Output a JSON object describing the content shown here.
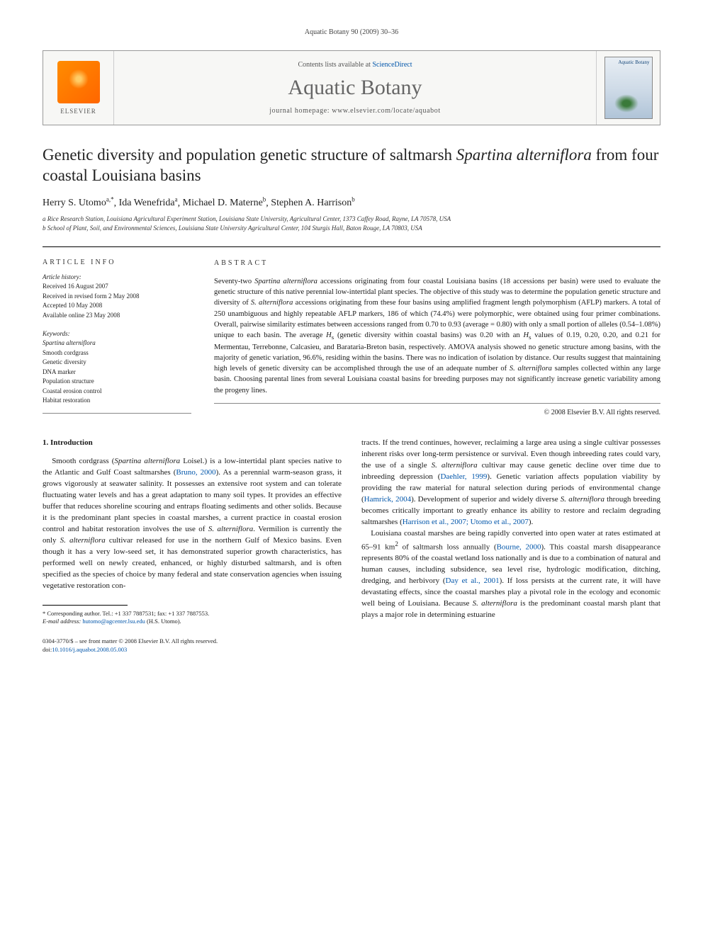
{
  "running_head": "Aquatic Botany 90 (2009) 30–36",
  "masthead": {
    "elsevier": "ELSEVIER",
    "contents_prefix": "Contents lists available at ",
    "contents_link": "ScienceDirect",
    "journal_name": "Aquatic Botany",
    "homepage": "journal homepage: www.elsevier.com/locate/aquabot",
    "cover_label": "Aquatic\nBotany"
  },
  "title_parts": {
    "pre": "Genetic diversity and population genetic structure of saltmarsh ",
    "species": "Spartina alterniflora",
    "post": " from four coastal Louisiana basins"
  },
  "authors": [
    {
      "name": "Herry S. Utomo",
      "sups": "a,*"
    },
    {
      "name": "Ida Wenefrida",
      "sups": "a"
    },
    {
      "name": "Michael D. Materne",
      "sups": "b"
    },
    {
      "name": "Stephen A. Harrison",
      "sups": "b"
    }
  ],
  "affiliations": [
    "a Rice Research Station, Louisiana Agricultural Experiment Station, Louisiana State University, Agricultural Center, 1373 Caffey Road, Rayne, LA 70578, USA",
    "b School of Plant, Soil, and Environmental Sciences, Louisiana State University Agricultural Center, 104 Sturgis Hall, Baton Rouge, LA 70803, USA"
  ],
  "article_info": {
    "heading": "ARTICLE INFO",
    "history_heading": "Article history:",
    "history": [
      "Received 16 August 2007",
      "Received in revised form 2 May 2008",
      "Accepted 10 May 2008",
      "Available online 23 May 2008"
    ],
    "keywords_heading": "Keywords:",
    "keywords": [
      {
        "text": "Spartina alterniflora",
        "italic": true
      },
      {
        "text": "Smooth cordgrass",
        "italic": false
      },
      {
        "text": "Genetic diversity",
        "italic": false
      },
      {
        "text": "DNA marker",
        "italic": false
      },
      {
        "text": "Population structure",
        "italic": false
      },
      {
        "text": "Coastal erosion control",
        "italic": false
      },
      {
        "text": "Habitat restoration",
        "italic": false
      }
    ]
  },
  "abstract": {
    "heading": "ABSTRACT",
    "text_parts": [
      {
        "t": "Seventy-two ",
        "i": false
      },
      {
        "t": "Spartina alterniflora",
        "i": true
      },
      {
        "t": " accessions originating from four coastal Louisiana basins (18 accessions per basin) were used to evaluate the genetic structure of this native perennial low-intertidal plant species. The objective of this study was to determine the population genetic structure and diversity of ",
        "i": false
      },
      {
        "t": "S. alterniflora",
        "i": true
      },
      {
        "t": " accessions originating from these four basins using amplified fragment length polymorphism (AFLP) markers. A total of 250 unambiguous and highly repeatable AFLP markers, 186 of which (74.4%) were polymorphic, were obtained using four primer combinations. Overall, pairwise similarity estimates between accessions ranged from 0.70 to 0.93 (average = 0.80) with only a small portion of alleles (0.54–1.08%) unique to each basin. The average ",
        "i": false
      },
      {
        "t": "H",
        "i": true
      },
      {
        "t": "s",
        "sub": true
      },
      {
        "t": " (genetic diversity within coastal basins) was 0.20 with an ",
        "i": false
      },
      {
        "t": "H",
        "i": true
      },
      {
        "t": "s",
        "sub": true
      },
      {
        "t": " values of 0.19, 0.20, 0.20, and 0.21 for Mermentau, Terrebonne, Calcasieu, and Barataria-Breton basin, respectively. AMOVA analysis showed no genetic structure among basins, with the majority of genetic variation, 96.6%, residing within the basins. There was no indication of isolation by distance. Our results suggest that maintaining high levels of genetic diversity can be accomplished through the use of an adequate number of ",
        "i": false
      },
      {
        "t": "S. alterniflora",
        "i": true
      },
      {
        "t": " samples collected within any large basin. Choosing parental lines from several Louisiana coastal basins for breeding purposes may not significantly increase genetic variability among the progeny lines.",
        "i": false
      }
    ],
    "copyright": "© 2008 Elsevier B.V. All rights reserved."
  },
  "section1": {
    "heading": "1. Introduction",
    "col1_html": "Smooth cordgrass (<span class=\"species\">Spartina alterniflora</span> Loisel.) is a low-intertidal plant species native to the Atlantic and Gulf Coast saltmarshes (<a class=\"ref\" href=\"#\">Bruno, 2000</a>). As a perennial warm-season grass, it grows vigorously at seawater salinity. It possesses an extensive root system and can tolerate fluctuating water levels and has a great adaptation to many soil types. It provides an effective buffer that reduces shoreline scouring and entraps floating sediments and other solids. Because it is the predominant plant species in coastal marshes, a current practice in coastal erosion control and habitat restoration involves the use of <span class=\"species\">S. alterniflora</span>. Vermilion is currently the only <span class=\"species\">S. alterniflora</span> cultivar released for use in the northern Gulf of Mexico basins. Even though it has a very low-seed set, it has demonstrated superior growth characteristics, has performed well on newly created, enhanced, or highly disturbed saltmarsh, and is often specified as the species of choice by many federal and state conservation agencies when issuing vegetative restoration con-",
    "col2_p1_html": "tracts. If the trend continues, however, reclaiming a large area using a single cultivar possesses inherent risks over long-term persistence or survival. Even though inbreeding rates could vary, the use of a single <span class=\"species\">S. alterniflora</span> cultivar may cause genetic decline over time due to inbreeding depression (<a class=\"ref\" href=\"#\">Daehler, 1999</a>). Genetic variation affects population viability by providing the raw material for natural selection during periods of environmental change (<a class=\"ref\" href=\"#\">Hamrick, 2004</a>). Development of superior and widely diverse <span class=\"species\">S. alterniflora</span> through breeding becomes critically important to greatly enhance its ability to restore and reclaim degrading saltmarshes (<a class=\"ref\" href=\"#\">Harrison et al., 2007; Utomo et al., 2007</a>).",
    "col2_p2_html": "Louisiana coastal marshes are being rapidly converted into open water at rates estimated at 65–91 km<sup>2</sup> of saltmarsh loss annually (<a class=\"ref\" href=\"#\">Bourne, 2000</a>). This coastal marsh disappearance represents 80% of the coastal wetland loss nationally and is due to a combination of natural and human causes, including subsidence, sea level rise, hydrologic modification, ditching, dredging, and herbivory (<a class=\"ref\" href=\"#\">Day et al., 2001</a>). If loss persists at the current rate, it will have devastating effects, since the coastal marshes play a pivotal role in the ecology and economic well being of Louisiana. Because <span class=\"species\">S. alterniflora</span> is the predominant coastal marsh plant that plays a major role in determining estuarine"
  },
  "footnotes": {
    "corr": "* Corresponding author. Tel.: +1 337 7887531; fax: +1 337 7887553.",
    "email_label": "E-mail address:",
    "email": "hutomo@agcenter.lsu.edu",
    "email_who": "(H.S. Utomo)."
  },
  "footer": {
    "line1": "0304-3770/$ – see front matter © 2008 Elsevier B.V. All rights reserved.",
    "doi_label": "doi:",
    "doi": "10.1016/j.aquabot.2008.05.003"
  },
  "colors": {
    "link": "#0055aa",
    "text": "#1a1a1a",
    "rule": "#000000",
    "muted": "#555555"
  }
}
